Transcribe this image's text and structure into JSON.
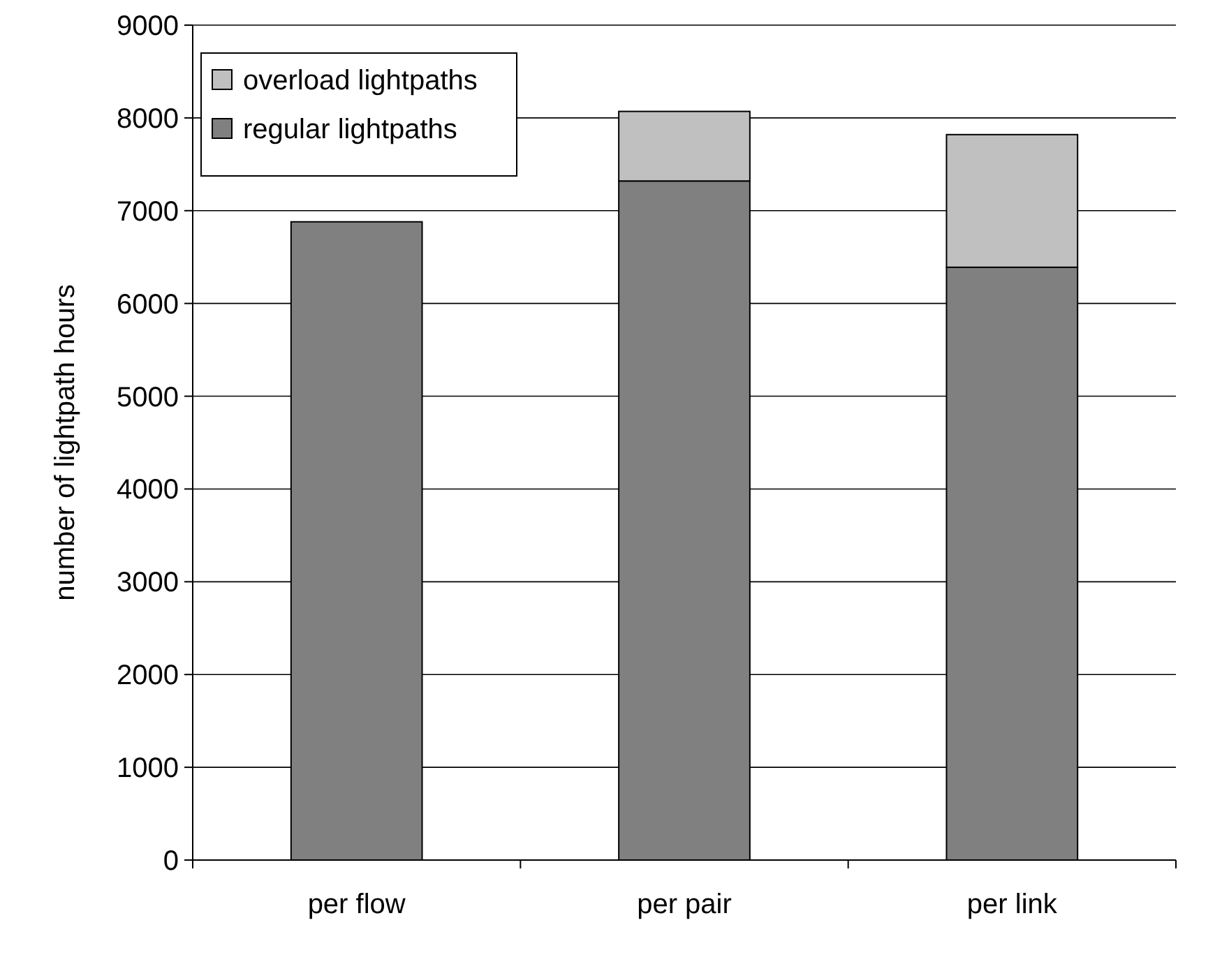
{
  "chart_data": {
    "type": "bar",
    "ylabel": "number of lightpath hours",
    "categories": [
      "per flow",
      "per pair",
      "per link"
    ],
    "stacked": true,
    "series": [
      {
        "name": "regular lightpaths",
        "color": "#808080",
        "values": [
          6880,
          7320,
          6390
        ]
      },
      {
        "name": "overload lightpaths",
        "color": "#c0c0c0",
        "values": [
          0,
          750,
          1430
        ]
      }
    ],
    "ylim": [
      0,
      9000
    ],
    "yticks": [
      0,
      1000,
      2000,
      3000,
      4000,
      5000,
      6000,
      7000,
      8000,
      9000
    ],
    "grid": "y",
    "legend": "top left"
  }
}
